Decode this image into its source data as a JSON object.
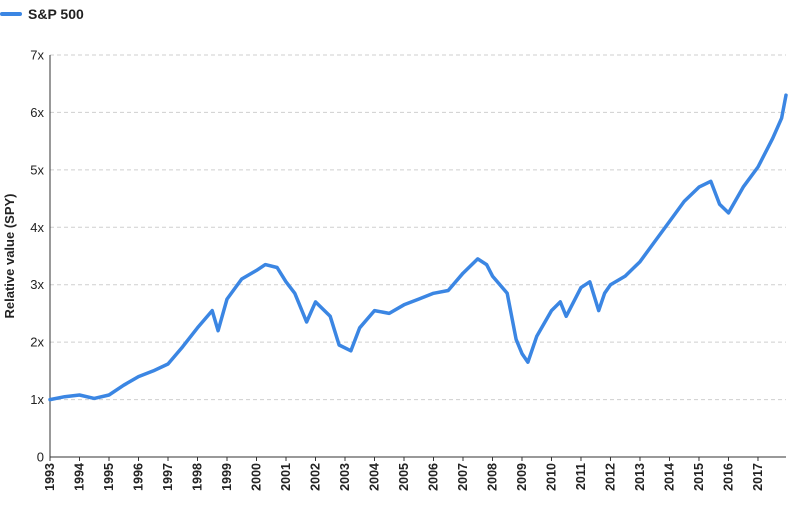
{
  "chart_data": {
    "type": "line",
    "title": "",
    "xlabel": "",
    "ylabel": "Relative value (SPY)",
    "legend_position": "top-left",
    "grid": true,
    "ylim": [
      0,
      7
    ],
    "xlim": [
      1993.0,
      2017.95
    ],
    "y_ticks": [
      "0",
      "1x",
      "2x",
      "3x",
      "4x",
      "5x",
      "6x",
      "7x"
    ],
    "x_ticks": [
      "1993",
      "1994",
      "1995",
      "1996",
      "1997",
      "1998",
      "1999",
      "2000",
      "2001",
      "2002",
      "2003",
      "2004",
      "2005",
      "2006",
      "2007",
      "2008",
      "2009",
      "2010",
      "2011",
      "2012",
      "2013",
      "2014",
      "2015",
      "2016",
      "2017"
    ],
    "series": [
      {
        "name": "S&P 500",
        "color": "#3b86e3",
        "x": [
          1993.0,
          1993.5,
          1994.0,
          1994.5,
          1995.0,
          1995.5,
          1996.0,
          1996.5,
          1997.0,
          1997.5,
          1998.0,
          1998.5,
          1998.7,
          1999.0,
          1999.5,
          2000.0,
          2000.3,
          2000.7,
          2001.0,
          2001.3,
          2001.7,
          2002.0,
          2002.5,
          2002.8,
          2003.2,
          2003.5,
          2004.0,
          2004.5,
          2005.0,
          2005.5,
          2006.0,
          2006.5,
          2007.0,
          2007.5,
          2007.8,
          2008.0,
          2008.5,
          2008.8,
          2009.0,
          2009.2,
          2009.5,
          2010.0,
          2010.3,
          2010.5,
          2011.0,
          2011.3,
          2011.6,
          2011.8,
          2012.0,
          2012.5,
          2013.0,
          2013.5,
          2014.0,
          2014.5,
          2015.0,
          2015.4,
          2015.7,
          2016.0,
          2016.5,
          2017.0,
          2017.5,
          2017.8,
          2017.95
        ],
        "y": [
          1.0,
          1.05,
          1.08,
          1.02,
          1.08,
          1.25,
          1.4,
          1.5,
          1.62,
          1.92,
          2.25,
          2.55,
          2.2,
          2.75,
          3.1,
          3.25,
          3.35,
          3.3,
          3.05,
          2.85,
          2.35,
          2.7,
          2.45,
          1.95,
          1.85,
          2.25,
          2.55,
          2.5,
          2.65,
          2.75,
          2.85,
          2.9,
          3.2,
          3.45,
          3.35,
          3.15,
          2.85,
          2.05,
          1.8,
          1.65,
          2.1,
          2.55,
          2.7,
          2.45,
          2.95,
          3.05,
          2.55,
          2.85,
          3.0,
          3.15,
          3.4,
          3.75,
          4.1,
          4.45,
          4.7,
          4.8,
          4.4,
          4.25,
          4.7,
          5.05,
          5.55,
          5.9,
          6.3
        ]
      }
    ]
  }
}
